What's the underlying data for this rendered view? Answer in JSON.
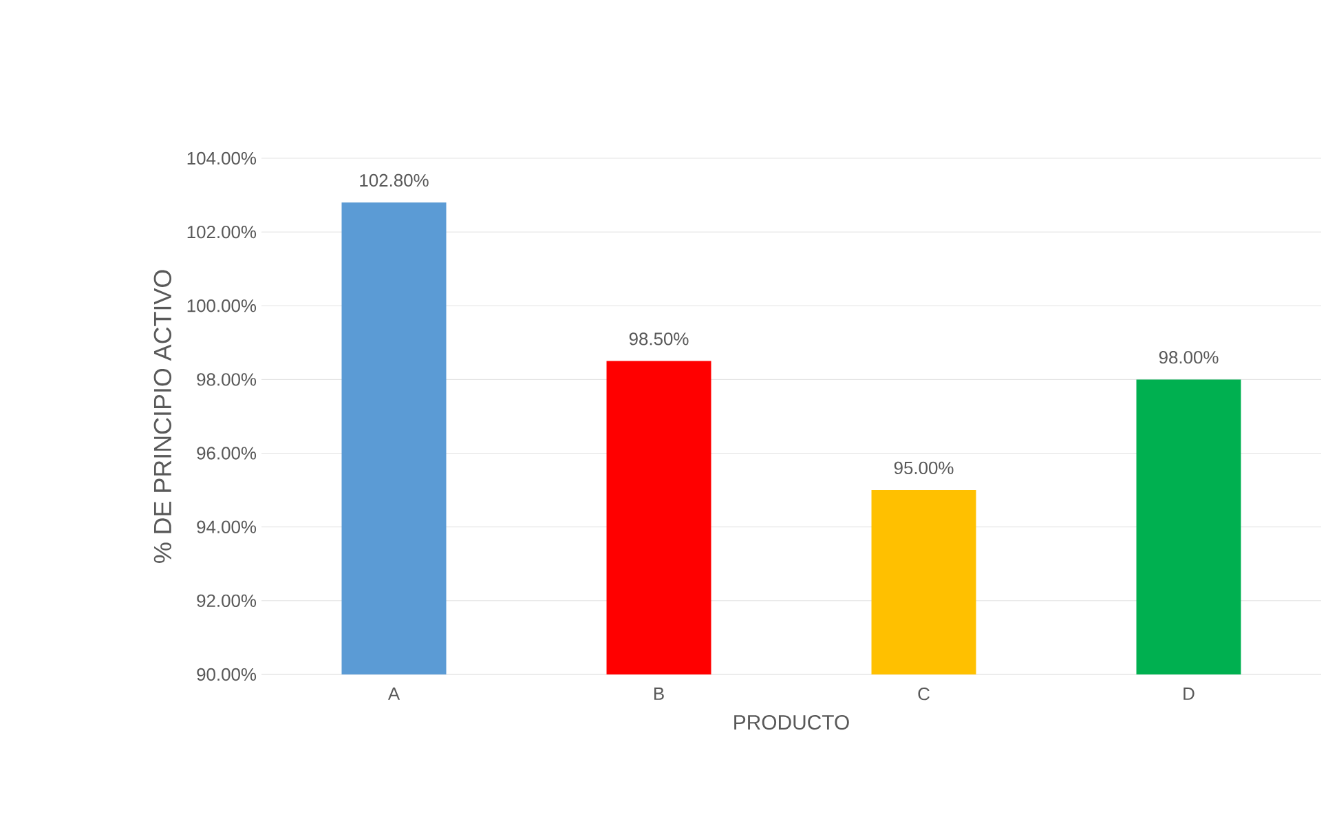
{
  "chart_data": {
    "type": "bar",
    "xlabel": "PRODUCTO",
    "ylabel": "% DE PRINCIPIO ACTIVO",
    "categories": [
      "A",
      "B",
      "C",
      "D"
    ],
    "values": [
      102.8,
      98.5,
      95.0,
      98.0
    ],
    "value_labels": [
      "102.80%",
      "98.50%",
      "95.00%",
      "98.00%"
    ],
    "colors": [
      "#5b9bd5",
      "#ff0000",
      "#ffc000",
      "#00b050"
    ],
    "ylim": [
      90,
      104
    ],
    "yticks": [
      {
        "value": 90,
        "label": "90.00%"
      },
      {
        "value": 92,
        "label": "92.00%"
      },
      {
        "value": 94,
        "label": "94.00%"
      },
      {
        "value": 96,
        "label": "96.00%"
      },
      {
        "value": 98,
        "label": "98.00%"
      },
      {
        "value": 100,
        "label": "100.00%"
      },
      {
        "value": 102,
        "label": "102.00%"
      },
      {
        "value": 104,
        "label": "104.00%"
      }
    ],
    "grid": "y"
  }
}
